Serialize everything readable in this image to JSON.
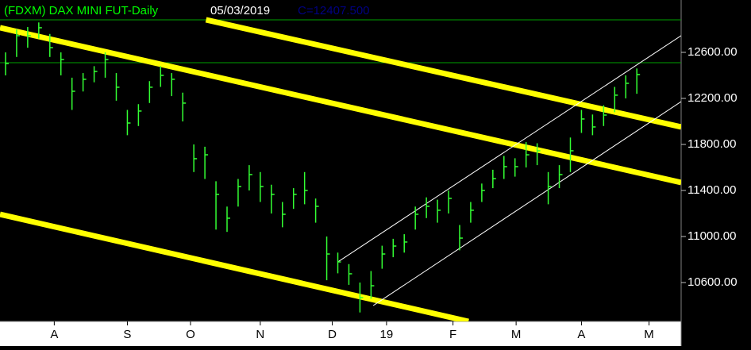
{
  "chart_data": {
    "type": "ohlc",
    "title": "(FDXM) DAX MINI FUT-Daily",
    "date": "05/03/2019",
    "last_close": "C=12407.500",
    "color": "#33ff33",
    "x": [
      0,
      1,
      2,
      3,
      4,
      5,
      6,
      7,
      8,
      9,
      10,
      11,
      12,
      13,
      14,
      15,
      16,
      17,
      18,
      19,
      20,
      21,
      22,
      23,
      24,
      25,
      26,
      27,
      28,
      29,
      30,
      31,
      32,
      33,
      34,
      35,
      36,
      37,
      38,
      39,
      40,
      41,
      42,
      43,
      44,
      45,
      46,
      47,
      48,
      49,
      50,
      51,
      52,
      53,
      54,
      55,
      56,
      57
    ],
    "high": [
      12600,
      12800,
      12820,
      12860,
      12760,
      12600,
      12380,
      12420,
      12480,
      12600,
      12420,
      12100,
      12150,
      12350,
      12480,
      12420,
      12250,
      11800,
      11780,
      11480,
      11260,
      11500,
      11620,
      11560,
      11450,
      11300,
      11420,
      11560,
      11330,
      11000,
      10860,
      10760,
      10600,
      10700,
      10920,
      10980,
      11020,
      11260,
      11340,
      11320,
      11400,
      11100,
      11300,
      11460,
      11580,
      11700,
      11680,
      11820,
      11810,
      11560,
      11620,
      11860,
      12100,
      12060,
      12140,
      12300,
      12400,
      12460
    ],
    "low": [
      12400,
      12560,
      12640,
      12720,
      12560,
      12400,
      12100,
      12260,
      12340,
      12380,
      12180,
      11880,
      11960,
      12160,
      12300,
      12220,
      12000,
      11560,
      11500,
      11060,
      11040,
      11260,
      11400,
      11300,
      11200,
      11080,
      11240,
      11280,
      11120,
      10620,
      10680,
      10580,
      10340,
      10460,
      10720,
      10820,
      10860,
      11060,
      11160,
      11120,
      11200,
      10880,
      11120,
      11300,
      11420,
      11500,
      11520,
      11600,
      11620,
      11280,
      11420,
      11560,
      11900,
      11880,
      11960,
      12080,
      12200,
      12240
    ],
    "close": [
      12503,
      12745,
      12745,
      12814,
      12641,
      12538,
      12262,
      12366,
      12434,
      12538,
      12297,
      11986,
      12090,
      12297,
      12400,
      12366,
      12159,
      11676,
      11710,
      11366,
      11159,
      11434,
      11538,
      11434,
      11366,
      11193,
      11366,
      11400,
      11262,
      10848,
      10779,
      10676,
      10469,
      10572,
      10848,
      10917,
      10952,
      11193,
      11262,
      11228,
      11331,
      10986,
      11228,
      11400,
      11503,
      11607,
      11607,
      11710,
      11745,
      11434,
      11538,
      11745,
      12021,
      11952,
      12055,
      12228,
      12331,
      12407.5
    ],
    "xlim": [
      -0.5,
      61
    ],
    "ylim": [
      10262,
      13055
    ],
    "xticks": [
      {
        "value": 4.4,
        "label": "A"
      },
      {
        "value": 11.0,
        "label": "S"
      },
      {
        "value": 16.7,
        "label": "O"
      },
      {
        "value": 23.0,
        "label": "N"
      },
      {
        "value": 29.5,
        "label": "D"
      },
      {
        "value": 34.4,
        "label": "19"
      },
      {
        "value": 40.4,
        "label": "F"
      },
      {
        "value": 46.1,
        "label": "M"
      },
      {
        "value": 52.0,
        "label": "A"
      },
      {
        "value": 58.1,
        "label": "M"
      }
    ],
    "yticks": [
      {
        "value": 10600,
        "label": "10600.00"
      },
      {
        "value": 11000,
        "label": "11000.00"
      },
      {
        "value": 11400,
        "label": "11400.00"
      },
      {
        "value": 11800,
        "label": "11800.00"
      },
      {
        "value": 12200,
        "label": "12200.00"
      },
      {
        "value": 12600,
        "label": "12600.00"
      }
    ],
    "hlines": {
      "values": [
        12883,
        12510
      ],
      "color": "#00a000"
    },
    "trendlines": [
      {
        "x": [
          18.1,
          61
        ],
        "y": [
          12883,
          11952
        ],
        "color": "#ffff00",
        "width": 7
      },
      {
        "x": [
          -0.5,
          61
        ],
        "y": [
          12814,
          11469
        ],
        "color": "#ffff00",
        "width": 7
      },
      {
        "x": [
          -0.5,
          41.8
        ],
        "y": [
          11193,
          10262
        ],
        "color": "#ffff00",
        "width": 7
      },
      {
        "x": [
          30.0,
          61
        ],
        "y": [
          10779,
          12745
        ],
        "color": "#ffffff",
        "width": 1
      },
      {
        "x": [
          33.2,
          61
        ],
        "y": [
          10400,
          12172
        ],
        "color": "#ffffff",
        "width": 1
      }
    ]
  }
}
